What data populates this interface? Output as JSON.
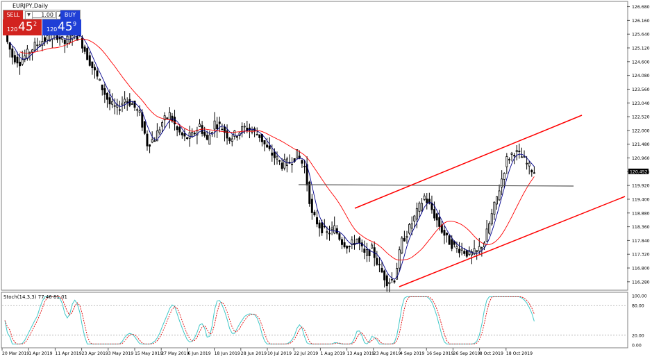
{
  "window": {
    "title": "EURJPY,Daily"
  },
  "trade_panel": {
    "sell_label": "SELL",
    "buy_label": "BUY",
    "lot": "1.00",
    "sell_big": "120",
    "sell_main": "45",
    "sell_sup": "2",
    "buy_big": "120",
    "buy_main": "45",
    "buy_sup": "9",
    "sell_color": "#d2231f",
    "buy_color": "#1f3fd6"
  },
  "chart_data": [
    {
      "type": "candlestick",
      "symbol": "EURJPY",
      "timeframe": "Daily",
      "y_ticks": [
        "126.680",
        "126.160",
        "125.640",
        "125.120",
        "124.600",
        "124.080",
        "123.560",
        "123.040",
        "122.520",
        "122.000",
        "121.480",
        "120.960",
        "120.440",
        "119.920",
        "119.400",
        "118.880",
        "118.360",
        "117.840",
        "117.320",
        "116.800",
        "116.280"
      ],
      "ylim": [
        116.04,
        126.8
      ],
      "current_price": "120.452",
      "x_labels": [
        "20 Mar 2019",
        "1 Apr 2019",
        "11 Apr 2019",
        "23 Apr 2019",
        "3 May 2019",
        "15 May 2019",
        "27 May 2019",
        "6 Jun 2019",
        "18 Jun 2019",
        "28 Jun 2019",
        "10 Jul 2019",
        "22 Jul 2019",
        "1 Aug 2019",
        "13 Aug 2019",
        "23 Aug 2019",
        "4 Sep 2019",
        "16 Sep 2019",
        "26 Sep 2019",
        "8 Oct 2019",
        "18 Oct 2019"
      ],
      "close_path": [
        [
          0,
          125.6
        ],
        [
          3,
          124.8
        ],
        [
          6,
          124.6
        ],
        [
          9,
          124.9
        ],
        [
          12,
          125.2
        ],
        [
          15,
          125.4
        ],
        [
          18,
          125.5
        ],
        [
          21,
          125.6
        ],
        [
          24,
          125.3
        ],
        [
          27,
          125.7
        ],
        [
          30,
          125.5
        ],
        [
          33,
          124.8
        ],
        [
          36,
          124.2
        ],
        [
          39,
          123.6
        ],
        [
          42,
          123.0
        ],
        [
          45,
          122.8
        ],
        [
          48,
          123.2
        ],
        [
          51,
          123.0
        ],
        [
          54,
          122.6
        ],
        [
          57,
          121.5
        ],
        [
          60,
          121.7
        ],
        [
          63,
          122.3
        ],
        [
          66,
          122.6
        ],
        [
          69,
          122.0
        ],
        [
          72,
          121.7
        ],
        [
          75,
          121.8
        ],
        [
          78,
          122.2
        ],
        [
          81,
          121.6
        ],
        [
          84,
          122.3
        ],
        [
          87,
          122.1
        ],
        [
          90,
          121.7
        ],
        [
          93,
          121.9
        ],
        [
          96,
          122.1
        ],
        [
          99,
          122.0
        ],
        [
          102,
          121.8
        ],
        [
          105,
          121.3
        ],
        [
          108,
          121.0
        ],
        [
          111,
          120.7
        ],
        [
          114,
          120.8
        ],
        [
          117,
          121.1
        ],
        [
          120,
          120.6
        ],
        [
          123,
          118.8
        ],
        [
          126,
          118.4
        ],
        [
          129,
          118.1
        ],
        [
          132,
          118.3
        ],
        [
          135,
          117.8
        ],
        [
          138,
          117.6
        ],
        [
          141,
          117.9
        ],
        [
          144,
          117.3
        ],
        [
          147,
          117.5
        ],
        [
          150,
          116.8
        ],
        [
          153,
          116.3
        ],
        [
          156,
          116.4
        ],
        [
          159,
          117.8
        ],
        [
          162,
          118.3
        ],
        [
          165,
          118.9
        ],
        [
          168,
          119.5
        ],
        [
          171,
          119.0
        ],
        [
          174,
          118.4
        ],
        [
          177,
          117.9
        ],
        [
          180,
          117.6
        ],
        [
          183,
          117.5
        ],
        [
          186,
          117.3
        ],
        [
          189,
          117.4
        ],
        [
          192,
          117.8
        ],
        [
          195,
          118.8
        ],
        [
          198,
          119.8
        ],
        [
          201,
          120.9
        ],
        [
          204,
          121.2
        ],
        [
          207,
          121.0
        ],
        [
          210,
          120.6
        ],
        [
          212,
          120.45
        ]
      ],
      "ma_fast_color": "#00008b",
      "ma_slow_color": "#ff0000",
      "trend_line_color": "#ff0000",
      "horizontal_line": 119.95
    },
    {
      "type": "line",
      "indicator": "Stoch(14,3,3) 77.46 81.01",
      "y_ticks": [
        "100.00",
        "80.00",
        "20.00",
        "0.00"
      ],
      "ylim": [
        0,
        100
      ],
      "main_color": "#40c8c8",
      "signal_color": "#e00000"
    }
  ]
}
